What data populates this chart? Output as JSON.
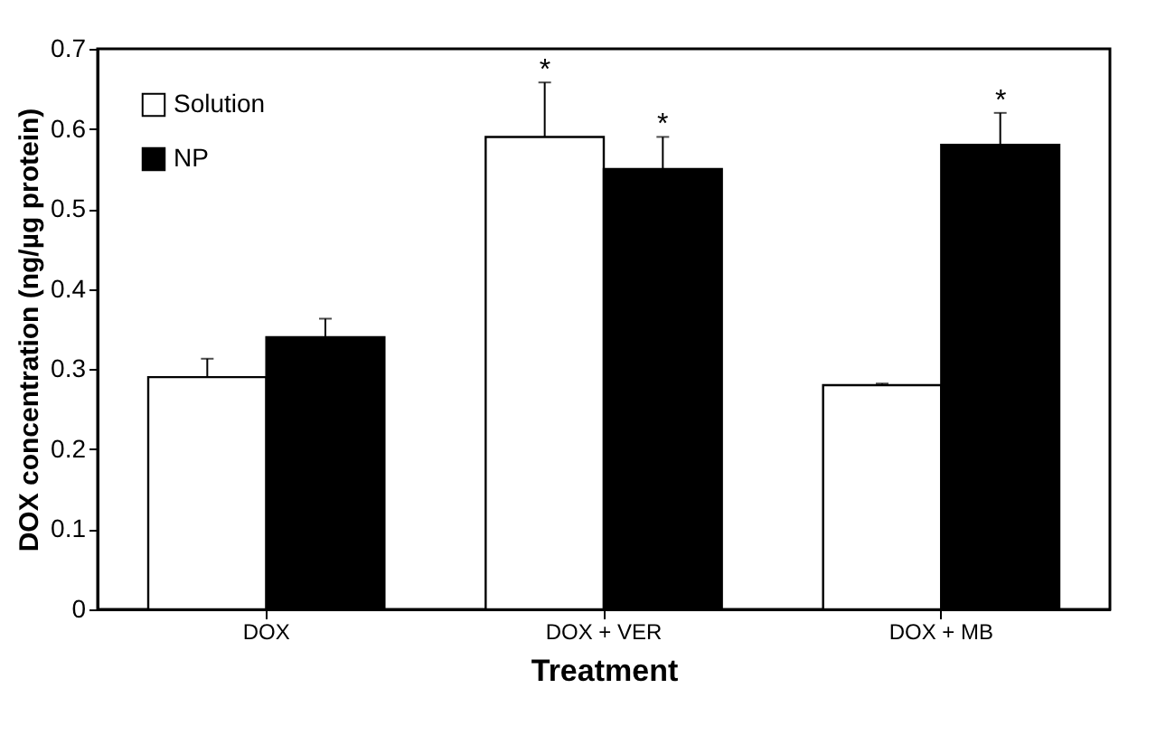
{
  "chart_data": {
    "type": "bar",
    "xlabel": "Treatment",
    "ylabel": "DOX concentration (ng/µg protein)",
    "categories": [
      "DOX",
      "DOX + VER",
      "DOX + MB"
    ],
    "series": [
      {
        "name": "Solution",
        "color": "#ffffff",
        "values": [
          0.29,
          0.59,
          0.28
        ],
        "errors": [
          [
            0.29,
            0.313
          ],
          [
            0.59,
            0.658
          ],
          [
            0.28,
            0.282
          ]
        ]
      },
      {
        "name": "NP",
        "color": "#000000",
        "values": [
          0.34,
          0.55,
          0.58
        ],
        "errors": [
          [
            0.34,
            0.363
          ],
          [
            0.55,
            0.59
          ],
          [
            0.58,
            0.62
          ]
        ]
      }
    ],
    "annotations": [
      "*",
      "*",
      "*"
    ],
    "ylim": [
      0,
      0.7
    ],
    "yticks": [
      0,
      0.1,
      0.2,
      0.3,
      0.4,
      0.5,
      0.6,
      0.7
    ],
    "grid": false,
    "legend": "top left"
  }
}
